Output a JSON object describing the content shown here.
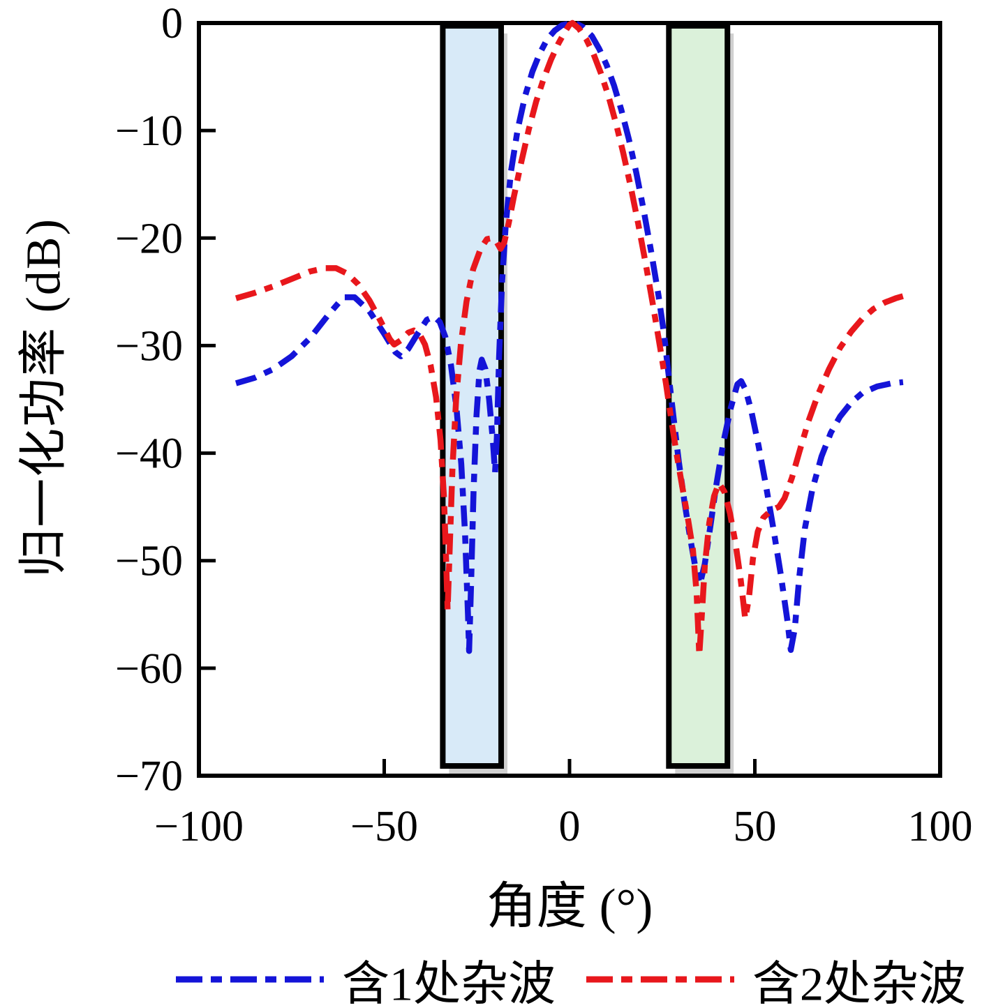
{
  "figure": {
    "background": "#ffffff"
  },
  "labels": {
    "y_axis_title": "归一化功率 (dB)",
    "x_axis_title": "角度 (°)"
  },
  "legend": {
    "items": [
      {
        "label": "含1处杂波",
        "color": "#1414d8"
      },
      {
        "label": "含2处杂波",
        "color": "#e8171c"
      }
    ]
  },
  "chart_data": {
    "type": "line",
    "title": "",
    "xlabel": "角度 (°)",
    "ylabel": "归一化功率 (dB)",
    "xlim": [
      -100,
      100
    ],
    "ylim": [
      -70,
      0
    ],
    "x_ticks": [
      -100,
      -50,
      0,
      50,
      100
    ],
    "y_ticks": [
      0,
      -10,
      -20,
      -30,
      -40,
      -50,
      -60,
      -70
    ],
    "grid": false,
    "legend_position": "bottom",
    "frame_color": "#000000",
    "highlight_regions": [
      {
        "name": "clutter-region-1",
        "x_from": -34.2,
        "x_to": -18.45,
        "fill": "#d8eaf8",
        "border": "#000000"
      },
      {
        "name": "clutter-region-2",
        "x_from": 26.8,
        "x_to": 42.6,
        "fill": "#dbf1da",
        "border": "#000000"
      }
    ],
    "series": [
      {
        "name": "含1处杂波",
        "color": "#1414d8",
        "style": "dash-dot",
        "points": [
          [
            -90,
            -33.5
          ],
          [
            -85,
            -33.0
          ],
          [
            -80,
            -32.2
          ],
          [
            -75,
            -31.0
          ],
          [
            -70,
            -29.3
          ],
          [
            -65,
            -27.1
          ],
          [
            -61,
            -25.5
          ],
          [
            -58,
            -25.5
          ],
          [
            -54,
            -26.8
          ],
          [
            -50,
            -28.9
          ],
          [
            -47,
            -30.6
          ],
          [
            -45.5,
            -31.0
          ],
          [
            -43.5,
            -30.3
          ],
          [
            -41,
            -28.9
          ],
          [
            -38.5,
            -27.6
          ],
          [
            -36.5,
            -27.3
          ],
          [
            -35,
            -27.8
          ],
          [
            -33.5,
            -29.2
          ],
          [
            -32,
            -31.8
          ],
          [
            -30.5,
            -35.8
          ],
          [
            -29.2,
            -41.0
          ],
          [
            -28.2,
            -47.5
          ],
          [
            -27.4,
            -55.0
          ],
          [
            -27.1,
            -58.4
          ],
          [
            -26.6,
            -52.5
          ],
          [
            -25.9,
            -43.5
          ],
          [
            -25.1,
            -36.5
          ],
          [
            -24.3,
            -32.3
          ],
          [
            -23.7,
            -31.3
          ],
          [
            -22.7,
            -32.2
          ],
          [
            -21.7,
            -35.0
          ],
          [
            -20.7,
            -38.8
          ],
          [
            -20.1,
            -41.8
          ],
          [
            -19.6,
            -38.5
          ],
          [
            -19,
            -31.0
          ],
          [
            -18.2,
            -24.0
          ],
          [
            -17.2,
            -18.7
          ],
          [
            -15.8,
            -13.8
          ],
          [
            -14,
            -9.9
          ],
          [
            -12,
            -6.8
          ],
          [
            -10,
            -4.5
          ],
          [
            -8,
            -2.8
          ],
          [
            -6,
            -1.5
          ],
          [
            -4,
            -0.7
          ],
          [
            -2,
            -0.2
          ],
          [
            0,
            -0.05
          ],
          [
            1.5,
            0
          ],
          [
            3.5,
            -0.35
          ],
          [
            6,
            -1.2
          ],
          [
            8,
            -2.4
          ],
          [
            10,
            -3.9
          ],
          [
            12,
            -5.8
          ],
          [
            14,
            -8.1
          ],
          [
            16,
            -10.8
          ],
          [
            18,
            -13.9
          ],
          [
            20,
            -17.4
          ],
          [
            22,
            -21.2
          ],
          [
            24,
            -25.3
          ],
          [
            25.5,
            -28.9
          ],
          [
            26.5,
            -32.0
          ],
          [
            28,
            -36.5
          ],
          [
            29.5,
            -40.8
          ],
          [
            31,
            -44.5
          ],
          [
            32.5,
            -47.8
          ],
          [
            34,
            -50.7
          ],
          [
            35.2,
            -52.2
          ],
          [
            36.5,
            -50.3
          ],
          [
            38,
            -46.8
          ],
          [
            39.5,
            -43.2
          ],
          [
            41.5,
            -39.0
          ],
          [
            43.5,
            -35.8
          ],
          [
            45.3,
            -33.6
          ],
          [
            46.3,
            -33.3
          ],
          [
            47.5,
            -34.1
          ],
          [
            49,
            -36.0
          ],
          [
            51,
            -39.3
          ],
          [
            53,
            -43.0
          ],
          [
            55,
            -47.0
          ],
          [
            57,
            -51.3
          ],
          [
            58.8,
            -55.6
          ],
          [
            59.7,
            -58.3
          ],
          [
            60.8,
            -56.3
          ],
          [
            62,
            -51.5
          ],
          [
            63.5,
            -47.0
          ],
          [
            65.5,
            -43.4
          ],
          [
            68,
            -40.3
          ],
          [
            70.5,
            -38.1
          ],
          [
            73,
            -36.6
          ],
          [
            76,
            -35.3
          ],
          [
            79,
            -34.4
          ],
          [
            83,
            -33.8
          ],
          [
            87,
            -33.5
          ],
          [
            90,
            -33.4
          ]
        ]
      },
      {
        "name": "含2处杂波",
        "color": "#e8171c",
        "style": "dash-dot",
        "points": [
          [
            -90,
            -25.6
          ],
          [
            -85,
            -25.1
          ],
          [
            -80,
            -24.5
          ],
          [
            -75,
            -23.8
          ],
          [
            -70,
            -23.1
          ],
          [
            -66,
            -22.8
          ],
          [
            -63,
            -22.8
          ],
          [
            -60,
            -23.3
          ],
          [
            -57,
            -24.3
          ],
          [
            -54,
            -25.8
          ],
          [
            -51,
            -27.7
          ],
          [
            -48.5,
            -29.4
          ],
          [
            -47.3,
            -29.9
          ],
          [
            -45.5,
            -29.5
          ],
          [
            -43.5,
            -28.8
          ],
          [
            -42,
            -28.6
          ],
          [
            -40.5,
            -28.9
          ],
          [
            -39,
            -29.9
          ],
          [
            -37.5,
            -31.8
          ],
          [
            -36,
            -34.8
          ],
          [
            -34.8,
            -38.8
          ],
          [
            -33.9,
            -44.0
          ],
          [
            -33.3,
            -50.0
          ],
          [
            -32.9,
            -54.6
          ],
          [
            -32.4,
            -49.5
          ],
          [
            -31.6,
            -41.5
          ],
          [
            -30.6,
            -35.0
          ],
          [
            -29.3,
            -29.8
          ],
          [
            -27.8,
            -25.9
          ],
          [
            -26,
            -22.9
          ],
          [
            -24,
            -21.0
          ],
          [
            -22.3,
            -20.1
          ],
          [
            -20.8,
            -20.0
          ],
          [
            -19.6,
            -20.4
          ],
          [
            -18.6,
            -21.0
          ],
          [
            -17.6,
            -20.4
          ],
          [
            -16.4,
            -18.6
          ],
          [
            -15,
            -16.1
          ],
          [
            -13,
            -12.9
          ],
          [
            -11,
            -9.9
          ],
          [
            -9,
            -7.3
          ],
          [
            -7,
            -5.2
          ],
          [
            -5,
            -3.4
          ],
          [
            -3,
            -1.9
          ],
          [
            -1.2,
            -0.8
          ],
          [
            0,
            -0.15
          ],
          [
            0.8,
            0
          ],
          [
            2.5,
            -0.5
          ],
          [
            4.5,
            -1.5
          ],
          [
            6.5,
            -2.9
          ],
          [
            8.5,
            -4.7
          ],
          [
            10.5,
            -6.8
          ],
          [
            12.5,
            -9.3
          ],
          [
            14.5,
            -12.1
          ],
          [
            16.5,
            -15.2
          ],
          [
            18.5,
            -18.6
          ],
          [
            20.5,
            -22.3
          ],
          [
            22.5,
            -26.2
          ],
          [
            24.5,
            -30.3
          ],
          [
            26,
            -33.5
          ],
          [
            27.5,
            -37.0
          ],
          [
            29,
            -40.3
          ],
          [
            30.5,
            -43.3
          ],
          [
            32,
            -46.2
          ],
          [
            33.3,
            -49.0
          ],
          [
            34.3,
            -53.0
          ],
          [
            35,
            -58.8
          ],
          [
            35.7,
            -55.0
          ],
          [
            36.5,
            -50.5
          ],
          [
            37.7,
            -46.5
          ],
          [
            39,
            -44.0
          ],
          [
            40.3,
            -42.8
          ],
          [
            41.8,
            -43.6
          ],
          [
            43.3,
            -45.6
          ],
          [
            44.8,
            -48.4
          ],
          [
            46.2,
            -51.8
          ],
          [
            47.4,
            -55.4
          ],
          [
            48.4,
            -53.5
          ],
          [
            49.5,
            -49.8
          ],
          [
            50.8,
            -47.3
          ],
          [
            52.3,
            -46.0
          ],
          [
            54.5,
            -45.3
          ],
          [
            56.5,
            -45.0
          ],
          [
            58,
            -44.2
          ],
          [
            60,
            -42.3
          ],
          [
            62,
            -39.9
          ],
          [
            64.5,
            -37.0
          ],
          [
            67,
            -34.6
          ],
          [
            70,
            -32.2
          ],
          [
            73,
            -30.2
          ],
          [
            76,
            -28.7
          ],
          [
            79,
            -27.5
          ],
          [
            82,
            -26.6
          ],
          [
            85,
            -26.0
          ],
          [
            88,
            -25.6
          ],
          [
            90,
            -25.4
          ]
        ]
      }
    ]
  }
}
